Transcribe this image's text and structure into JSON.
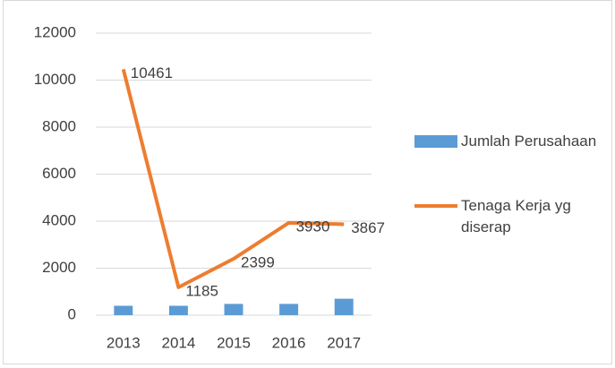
{
  "chart_data": {
    "type": "bar_line",
    "categories": [
      "2013",
      "2014",
      "2015",
      "2016",
      "2017"
    ],
    "series": [
      {
        "name": "Jumlah Perusahaan",
        "type": "bar",
        "color": "#5b9bd5",
        "values": [
          400,
          400,
          480,
          480,
          700
        ]
      },
      {
        "name": "Tenaga Kerja yg diserap",
        "type": "line",
        "color": "#ed7d31",
        "values": [
          10461,
          1185,
          2399,
          3930,
          3867
        ],
        "data_labels": true
      }
    ],
    "ylim": [
      0,
      12000
    ],
    "yticks": [
      0,
      2000,
      4000,
      6000,
      8000,
      10000,
      12000
    ],
    "grid": true,
    "legend": "right"
  }
}
